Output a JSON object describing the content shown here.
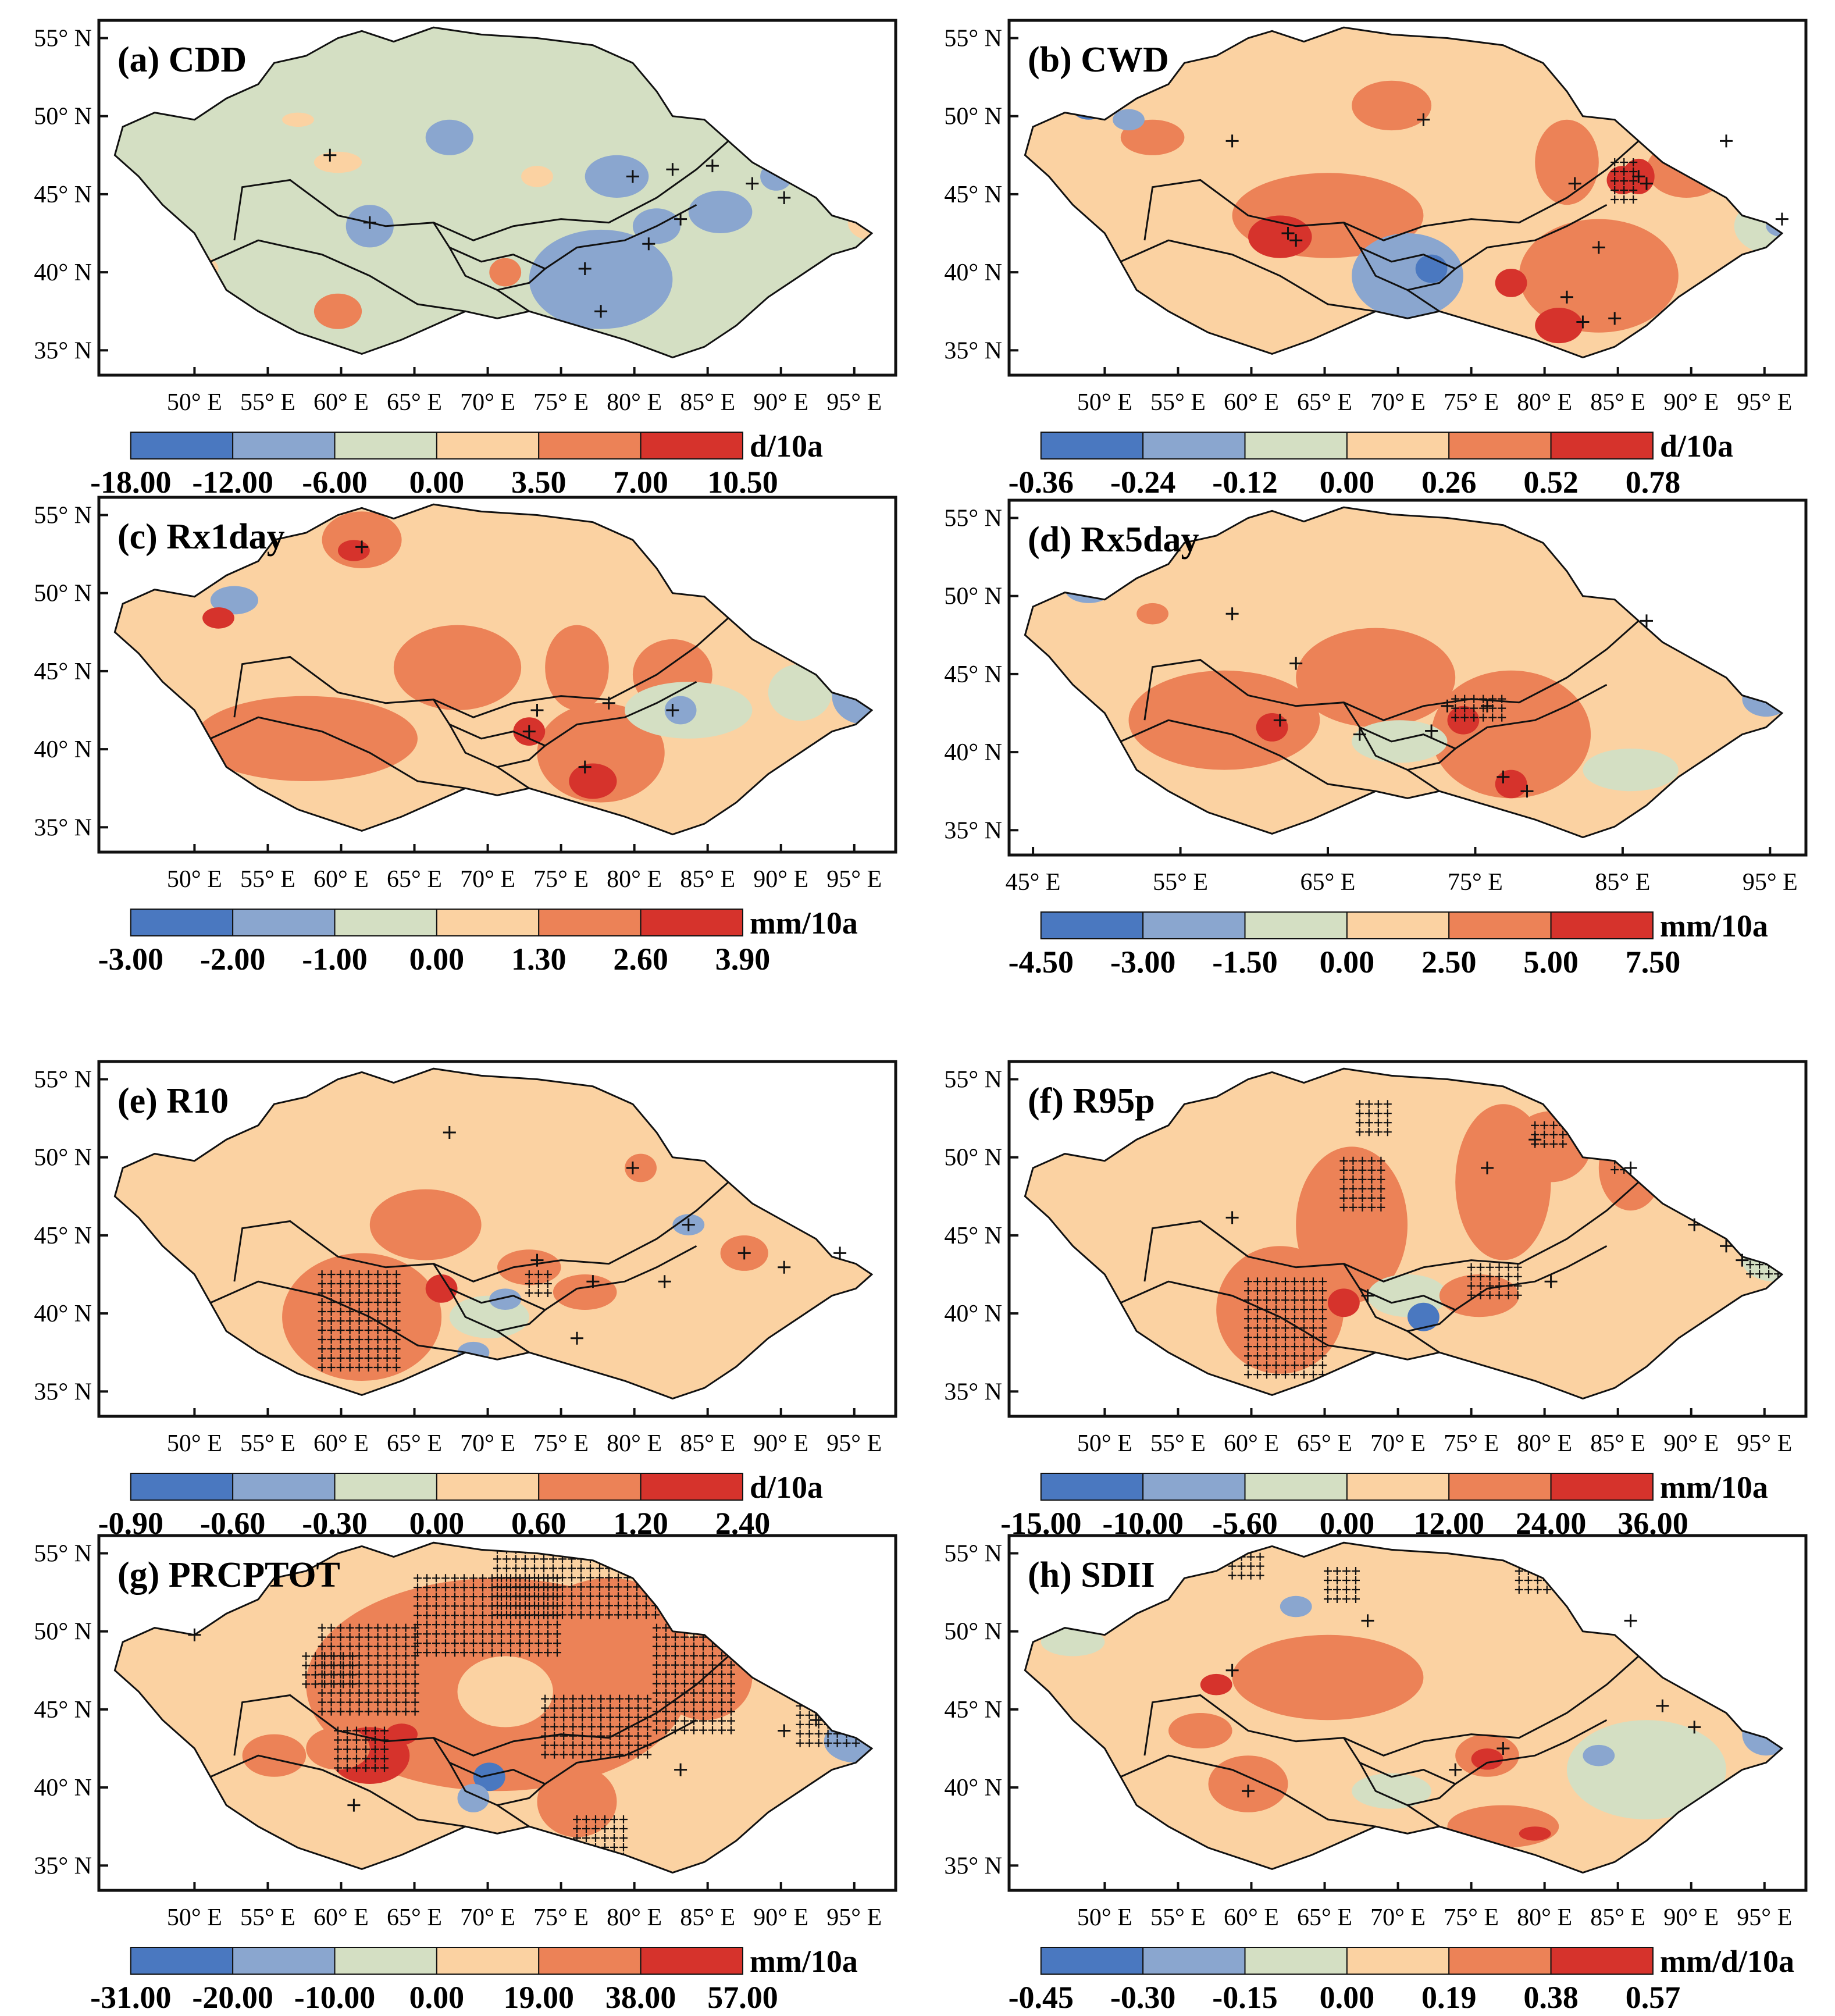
{
  "figure": {
    "panels": [
      {
        "id": "a",
        "title": "(a) CDD",
        "unit": "d/10a",
        "lat_ticks": [
          "55° N",
          "50° N",
          "45° N",
          "40° N",
          "35° N"
        ],
        "lon_ticks": [
          "50° E",
          "55° E",
          "60° E",
          "65° E",
          "70° E",
          "75° E",
          "80° E",
          "85° E",
          "90° E",
          "95° E"
        ],
        "legend_labels": [
          "-18.00",
          "-12.00",
          "-6.00",
          "0.00",
          "3.50",
          "7.00",
          "10.50"
        ],
        "dominant": "light-green"
      },
      {
        "id": "b",
        "title": "(b) CWD",
        "unit": "d/10a",
        "lat_ticks": [
          "55° N",
          "50° N",
          "45° N",
          "40° N",
          "35° N"
        ],
        "lon_ticks": [
          "50° E",
          "55° E",
          "60° E",
          "65° E",
          "70° E",
          "75° E",
          "80° E",
          "85° E",
          "90° E",
          "95° E"
        ],
        "legend_labels": [
          "-0.36",
          "-0.24",
          "-0.12",
          "0.00",
          "0.26",
          "0.52",
          "0.78"
        ],
        "dominant": "peach"
      },
      {
        "id": "c",
        "title": "(c) Rx1day",
        "unit": "mm/10a",
        "lat_ticks": [
          "55° N",
          "50° N",
          "45° N",
          "40° N",
          "35° N"
        ],
        "lon_ticks": [
          "50° E",
          "55° E",
          "60° E",
          "65° E",
          "70° E",
          "75° E",
          "80° E",
          "85° E",
          "90° E",
          "95° E"
        ],
        "legend_labels": [
          "-3.00",
          "-2.00",
          "-1.00",
          "0.00",
          "1.30",
          "2.60",
          "3.90"
        ],
        "dominant": "peach"
      },
      {
        "id": "d",
        "title": "(d) Rx5day",
        "unit": "mm/10a",
        "lat_ticks": [
          "55° N",
          "50° N",
          "45° N",
          "40° N",
          "35° N"
        ],
        "lon_ticks": [
          "45° E",
          "55° E",
          "65° E",
          "75° E",
          "85° E",
          "95° E"
        ],
        "legend_labels": [
          "-4.50",
          "-3.00",
          "-1.50",
          "0.00",
          "2.50",
          "5.00",
          "7.50"
        ],
        "dominant": "peach"
      },
      {
        "id": "e",
        "title": "(e) R10",
        "unit": "d/10a",
        "lat_ticks": [
          "55° N",
          "50° N",
          "45° N",
          "40° N",
          "35° N"
        ],
        "lon_ticks": [
          "50° E",
          "55° E",
          "60° E",
          "65° E",
          "70° E",
          "75° E",
          "80° E",
          "85° E",
          "90° E",
          "95° E"
        ],
        "legend_labels": [
          "-0.90",
          "-0.60",
          "-0.30",
          "0.00",
          "0.60",
          "1.20",
          "2.40"
        ],
        "dominant": "peach"
      },
      {
        "id": "f",
        "title": "(f) R95p",
        "unit": "mm/10a",
        "lat_ticks": [
          "55° N",
          "50° N",
          "45° N",
          "40° N",
          "35° N"
        ],
        "lon_ticks": [
          "50° E",
          "55° E",
          "60° E",
          "65° E",
          "70° E",
          "75° E",
          "80° E",
          "85° E",
          "90° E",
          "95° E"
        ],
        "legend_labels": [
          "-15.00",
          "-10.00",
          "-5.60",
          "0.00",
          "12.00",
          "24.00",
          "36.00"
        ],
        "dominant": "peach"
      },
      {
        "id": "g",
        "title": "(g) PRCPTOT",
        "unit": "mm/10a",
        "lat_ticks": [
          "55° N",
          "50° N",
          "45° N",
          "40° N",
          "35° N"
        ],
        "lon_ticks": [
          "50° E",
          "55° E",
          "60° E",
          "65° E",
          "70° E",
          "75° E",
          "80° E",
          "85° E",
          "90° E",
          "95° E"
        ],
        "legend_labels": [
          "-31.00",
          "-20.00",
          "-10.00",
          "0.00",
          "19.00",
          "38.00",
          "57.00"
        ],
        "dominant": "peach"
      },
      {
        "id": "h",
        "title": "(h) SDII",
        "unit": "mm/d/10a",
        "lat_ticks": [
          "55° N",
          "50° N",
          "45° N",
          "40° N",
          "35° N"
        ],
        "lon_ticks": [
          "50° E",
          "55° E",
          "60° E",
          "65° E",
          "70° E",
          "75° E",
          "80° E",
          "85° E",
          "90° E",
          "95° E"
        ],
        "legend_labels": [
          "-0.45",
          "-0.30",
          "-0.15",
          "0.00",
          "0.19",
          "0.38",
          "0.57"
        ],
        "dominant": "peach"
      }
    ],
    "colors": {
      "scale": [
        "#4a78c0",
        "#8aa6cf",
        "#d4dfc3",
        "#fbd2a2",
        "#ec8257",
        "#d6332c"
      ],
      "light_green": "#d4dfc3",
      "peach": "#fbd2a2",
      "orange": "#ec8257",
      "red": "#d6332c",
      "blue": "#4a78c0",
      "grayblue": "#8aa6cf",
      "outline": "#111111"
    }
  }
}
